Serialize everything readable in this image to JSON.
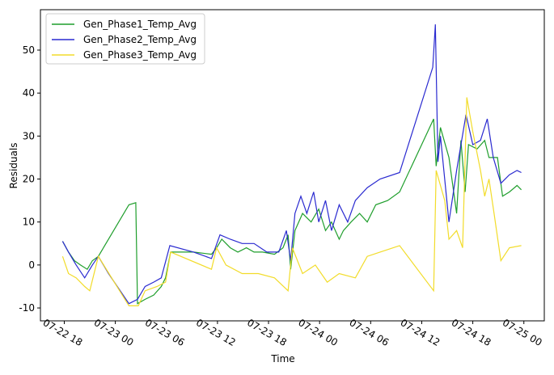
{
  "chart_data": {
    "type": "line",
    "xlabel": "Time",
    "ylabel": "Residuals",
    "legend": "upper left",
    "xlim": [
      15.2,
      74.4
    ],
    "ylim": [
      -13,
      59.4
    ],
    "xticks": [
      {
        "value": 18,
        "label": "07-22 18"
      },
      {
        "value": 24,
        "label": "07-23 00"
      },
      {
        "value": 30,
        "label": "07-23 06"
      },
      {
        "value": 36,
        "label": "07-23 12"
      },
      {
        "value": 42,
        "label": "07-23 18"
      },
      {
        "value": 48,
        "label": "07-24 00"
      },
      {
        "value": 54,
        "label": "07-24 06"
      },
      {
        "value": 60,
        "label": "07-24 12"
      },
      {
        "value": 66,
        "label": "07-24 18"
      },
      {
        "value": 72,
        "label": "07-25 00"
      }
    ],
    "yticks": [
      -10,
      0,
      10,
      20,
      30,
      40,
      50
    ],
    "series": [
      {
        "name": "Gen_Phase1_Temp_Avg",
        "color": "#1f9e2c",
        "x": [
          17.8,
          18.5,
          19.2,
          19.9,
          20.7,
          21.3,
          22,
          25.6,
          26.4,
          26.6,
          27.5,
          28.5,
          29.4,
          29.9,
          30.5,
          33.2,
          35.3,
          35.9,
          36.5,
          37.5,
          38.4,
          39.4,
          40.3,
          41.3,
          42.7,
          43.7,
          44.3,
          44.6,
          45.1,
          46,
          47,
          47.9,
          48.7,
          49.4,
          50.3,
          50.8,
          51.7,
          52.7,
          53.6,
          54.6,
          56,
          57.4,
          61.4,
          61.7,
          62.2,
          63.2,
          64.1,
          64.6,
          65.1,
          65.5,
          66.5,
          67.4,
          67.9,
          68.9,
          69.5,
          70.3,
          71.2,
          71.7
        ],
        "values": [
          5.5,
          3,
          1,
          0,
          -1,
          1,
          2,
          14,
          14.5,
          -9,
          -8,
          -7,
          -5,
          -3,
          3,
          3,
          2.5,
          4,
          6,
          4,
          3,
          4,
          3,
          3,
          2.5,
          4,
          7,
          -1,
          8,
          12,
          10,
          13,
          8,
          10,
          6,
          8,
          10,
          12,
          10,
          14,
          15,
          17,
          34,
          23,
          32,
          25,
          12,
          29,
          17,
          28,
          27,
          29,
          25,
          25,
          16,
          17,
          18.5,
          17.5
        ]
      },
      {
        "name": "Gen_Phase2_Temp_Avg",
        "color": "#2a2ad0",
        "x": [
          17.8,
          18.5,
          19.4,
          20.4,
          21.3,
          22,
          23.2,
          25.6,
          26.6,
          27.5,
          28.5,
          29.4,
          30.4,
          33.2,
          35.3,
          36.3,
          37.5,
          38.9,
          40.3,
          41.8,
          43.2,
          44.1,
          44.6,
          45.1,
          45.8,
          46.5,
          47.3,
          47.9,
          48.7,
          49.4,
          50.3,
          51.3,
          52.2,
          53.6,
          55.1,
          57.4,
          61.3,
          61.6,
          61.9,
          62.2,
          63.2,
          64.1,
          65.2,
          66,
          66.9,
          67.7,
          68.4,
          69.3,
          70.3,
          71.2,
          71.7
        ],
        "values": [
          5.5,
          3,
          0,
          -3,
          0,
          2,
          -2,
          -9,
          -8,
          -5,
          -4,
          -3,
          4.5,
          3,
          1.5,
          7,
          6,
          5,
          5,
          3,
          3,
          8,
          1,
          12,
          16,
          12,
          17,
          10,
          15,
          8,
          14,
          10,
          15,
          18,
          20,
          21.5,
          46,
          56,
          24,
          30,
          10,
          22,
          35,
          28,
          29,
          34,
          25,
          19,
          21,
          22,
          21.5
        ]
      },
      {
        "name": "Gen_Phase3_Temp_Avg",
        "color": "#f2dc2a",
        "x": [
          17.8,
          18.5,
          19.4,
          20.4,
          21,
          22,
          25.6,
          26.7,
          27.5,
          28.9,
          29.9,
          30.5,
          35.3,
          35.9,
          37,
          38.9,
          40.8,
          42.7,
          44.3,
          44.8,
          46,
          47.5,
          48.9,
          50.3,
          52.2,
          53.6,
          55.1,
          57.4,
          61.4,
          61.7,
          62.7,
          63.2,
          64.1,
          64.8,
          65.3,
          66,
          66.9,
          67.4,
          67.9,
          68.5,
          69.3,
          70.3,
          71.7
        ],
        "values": [
          2,
          -2,
          -3,
          -5,
          -6,
          2,
          -9.5,
          -9.5,
          -6,
          -5,
          -4,
          3,
          -1,
          4,
          0,
          -2,
          -2,
          -3,
          -6,
          4,
          -2,
          0,
          -4,
          -2,
          -3,
          2,
          3,
          4.5,
          -6,
          22,
          15,
          6,
          8,
          4,
          39,
          31,
          22,
          16,
          20,
          12,
          1,
          4,
          4.5
        ]
      }
    ]
  }
}
